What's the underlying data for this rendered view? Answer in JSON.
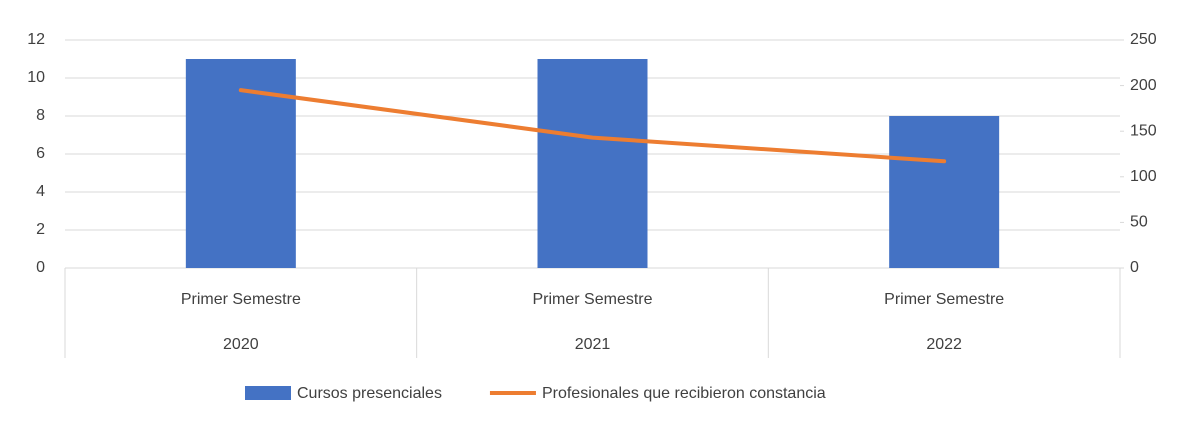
{
  "chart_data": {
    "type": "bar",
    "categories": [
      [
        "Primer Semestre",
        "2020"
      ],
      [
        "Primer Semestre",
        "2021"
      ],
      [
        "Primer Semestre",
        "2022"
      ]
    ],
    "series": [
      {
        "name": "Cursos presenciales",
        "type": "bar",
        "color": "#4472c4",
        "values": [
          11,
          11,
          8
        ]
      },
      {
        "name": "Profesionales que recibieron constancia",
        "type": "line",
        "axis": "y2",
        "color": "#ed7d31",
        "values": [
          195,
          143,
          117
        ]
      }
    ],
    "ylim": [
      0,
      12
    ],
    "yticks": [
      0,
      2,
      4,
      6,
      8,
      10,
      12
    ],
    "y2lim": [
      0,
      250
    ],
    "y2ticks": [
      0,
      50,
      100,
      150,
      200,
      250
    ],
    "grid": true,
    "legend": "bottom"
  }
}
